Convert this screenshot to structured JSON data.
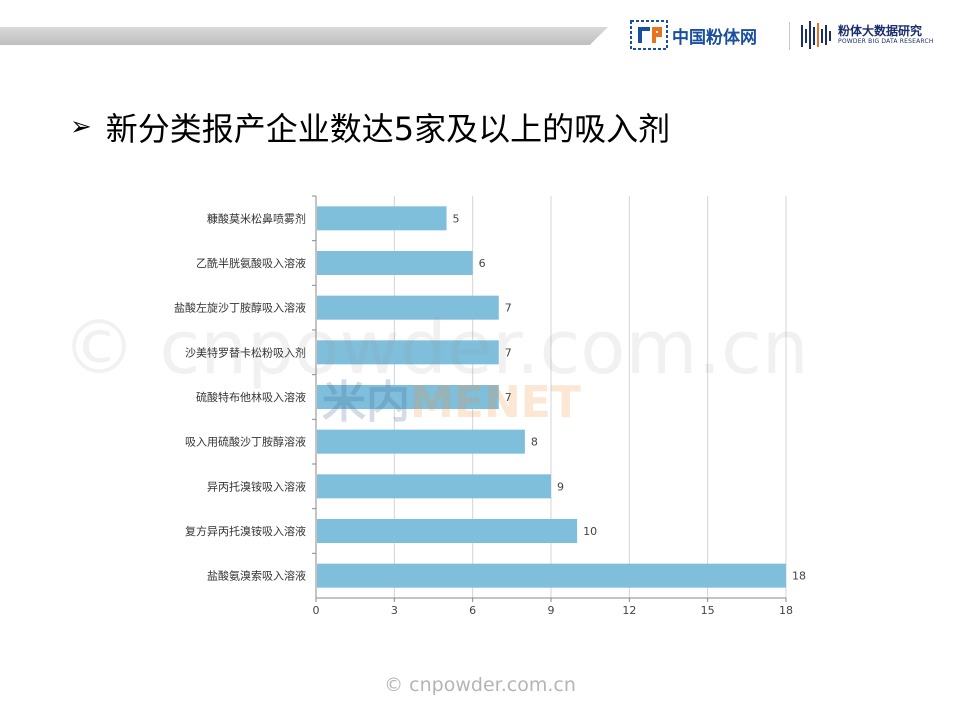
{
  "header": {
    "brand_cn": "中国粉体网",
    "bigdata_title": "粉体大数据研究",
    "bigdata_sub": "POWDER BIG DATA RESEARCH"
  },
  "slide": {
    "arrow": "➢",
    "title": "新分类报产企业数达5家及以上的吸入剂"
  },
  "watermark": {
    "text": "© cnpowder.com.cn",
    "menet_a": "米内",
    "menet_b": "MENET"
  },
  "footer": {
    "text": "© cnpowder.com.cn"
  },
  "colors": {
    "bar": "#7fbfdc",
    "grid": "#d4d4d4",
    "axis": "#888888"
  },
  "chart_data": {
    "type": "bar",
    "orientation": "horizontal",
    "categories": [
      "糠酸莫米松鼻喷雾剂",
      "乙酰半胱氨酸吸入溶液",
      "盐酸左旋沙丁胺醇吸入溶液",
      "沙美特罗替卡松粉吸入剂",
      "硫酸特布他林吸入溶液",
      "吸入用硫酸沙丁胺醇溶液",
      "异丙托溴铵吸入溶液",
      "复方异丙托溴铵吸入溶液",
      "盐酸氨溴索吸入溶液"
    ],
    "values": [
      5,
      6,
      7,
      7,
      7,
      8,
      9,
      10,
      18
    ],
    "xlim": [
      0,
      18
    ],
    "xticks": [
      "0",
      "3",
      "6",
      "9",
      "12",
      "15",
      "18"
    ],
    "grid": true,
    "data_labels": true
  }
}
